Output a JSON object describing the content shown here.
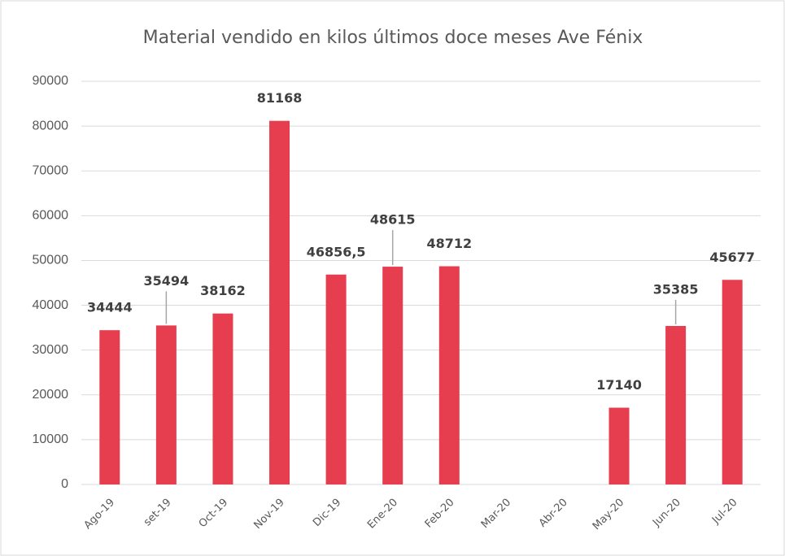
{
  "chart_data": {
    "type": "bar",
    "title": "Material vendido en kilos últimos doce meses Ave Fénix",
    "categories": [
      "Ago-19",
      "set-19",
      "Oct-19",
      "Nov-19",
      "Dic-19",
      "Ene-20",
      "Feb-20",
      "Mar-20",
      "Abr-20",
      "May-20",
      "Jun-20",
      "Jul-20"
    ],
    "values": [
      34444,
      35494,
      38162,
      81168,
      46856.5,
      48615,
      48712,
      null,
      null,
      17140,
      35385,
      45677
    ],
    "value_labels": [
      "34444",
      "35494",
      "38162",
      "81168",
      "46856,5",
      "48615",
      "48712",
      null,
      null,
      "17140",
      "35385",
      "45677"
    ],
    "color": "#e63e4e",
    "ylim": [
      0,
      90000
    ],
    "yticks": [
      0,
      10000,
      20000,
      30000,
      40000,
      50000,
      60000,
      70000,
      80000,
      90000
    ],
    "grid": true
  }
}
